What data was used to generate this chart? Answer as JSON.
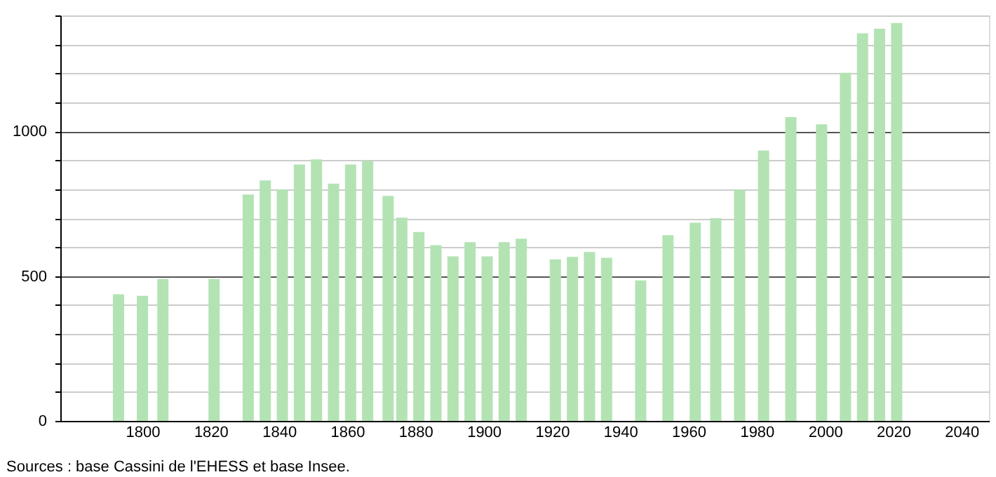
{
  "chart_data": {
    "type": "bar",
    "x": [
      1793,
      1800,
      1806,
      1821,
      1831,
      1836,
      1841,
      1846,
      1851,
      1856,
      1861,
      1866,
      1872,
      1876,
      1881,
      1886,
      1891,
      1896,
      1901,
      1906,
      1911,
      1921,
      1926,
      1931,
      1936,
      1946,
      1954,
      1962,
      1968,
      1975,
      1982,
      1990,
      1999,
      2006,
      2011,
      2016,
      2021
    ],
    "values": [
      437,
      432,
      490,
      490,
      782,
      830,
      799,
      885,
      903,
      819,
      885,
      898,
      777,
      702,
      652,
      607,
      568,
      617,
      568,
      617,
      629,
      558,
      566,
      583,
      563,
      485,
      641,
      684,
      700,
      798,
      934,
      1049,
      1024,
      1202,
      1338,
      1354,
      1374
    ],
    "color": "#b3e3b3",
    "xlim": [
      1778,
      2046
    ],
    "xticks": [
      1800,
      1820,
      1840,
      1860,
      1880,
      1900,
      1920,
      1940,
      1960,
      1980,
      2000,
      2020,
      2040
    ],
    "ylim": [
      0,
      1400
    ],
    "yticks": [
      0,
      {
        "value": 100,
        "label": null
      },
      {
        "value": 200,
        "label": null
      },
      {
        "value": 300,
        "label": null
      },
      {
        "value": 400,
        "label": null
      },
      500,
      {
        "value": 600,
        "label": null
      },
      {
        "value": 700,
        "label": null
      },
      {
        "value": 800,
        "label": null
      },
      {
        "value": 900,
        "label": null
      },
      1000,
      {
        "value": 1100,
        "label": null
      },
      {
        "value": 1200,
        "label": null
      },
      {
        "value": 1300,
        "label": null
      },
      {
        "value": 1400,
        "label": null
      }
    ],
    "grid": "y",
    "annotations": [
      "Sources : base Cassini de l'EHESS et base Insee."
    ]
  }
}
